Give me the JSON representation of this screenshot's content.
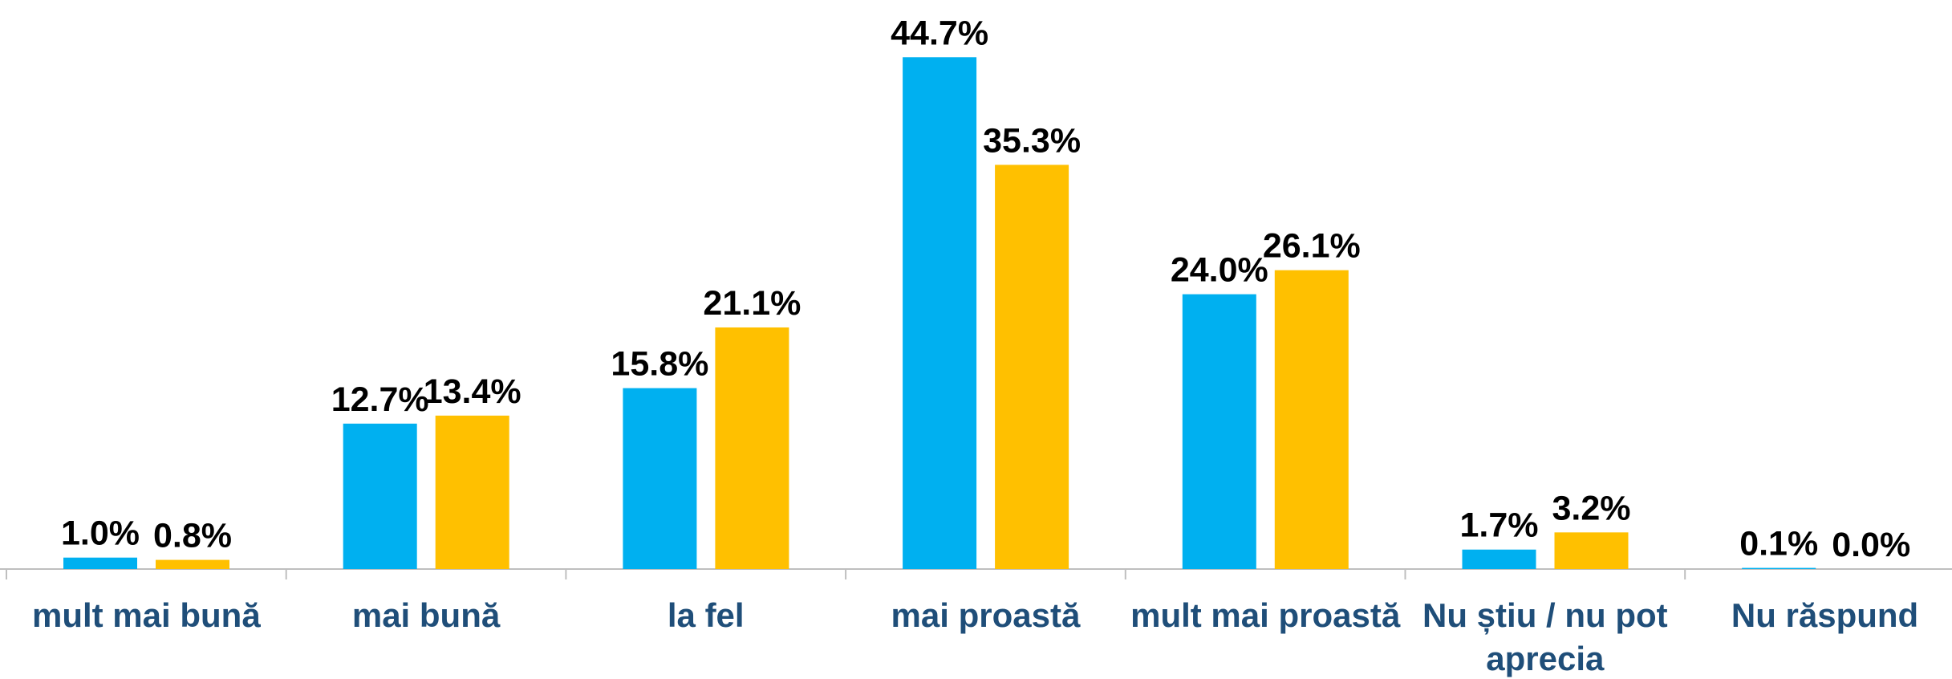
{
  "chart_data": {
    "type": "bar",
    "categories": [
      "mult mai bună",
      "mai bună",
      "la fel",
      "mai proastă",
      "mult mai proastă",
      "Nu știu / nu pot aprecia",
      "Nu răspund"
    ],
    "series": [
      {
        "color": "#00b0f0",
        "values": [
          1.0,
          12.7,
          15.8,
          44.7,
          24.0,
          1.7,
          0.1
        ],
        "value_labels": [
          "1.0%",
          "12.7%",
          "15.8%",
          "44.7%",
          "24.0%",
          "1.7%",
          "0.1%"
        ]
      },
      {
        "color": "#ffc000",
        "values": [
          0.8,
          13.4,
          21.1,
          35.3,
          26.1,
          3.2,
          0.0
        ],
        "value_labels": [
          "0.8%",
          "13.4%",
          "21.1%",
          "35.3%",
          "26.1%",
          "3.2%",
          "0.0%"
        ]
      }
    ],
    "ylim": [
      0,
      45
    ]
  }
}
